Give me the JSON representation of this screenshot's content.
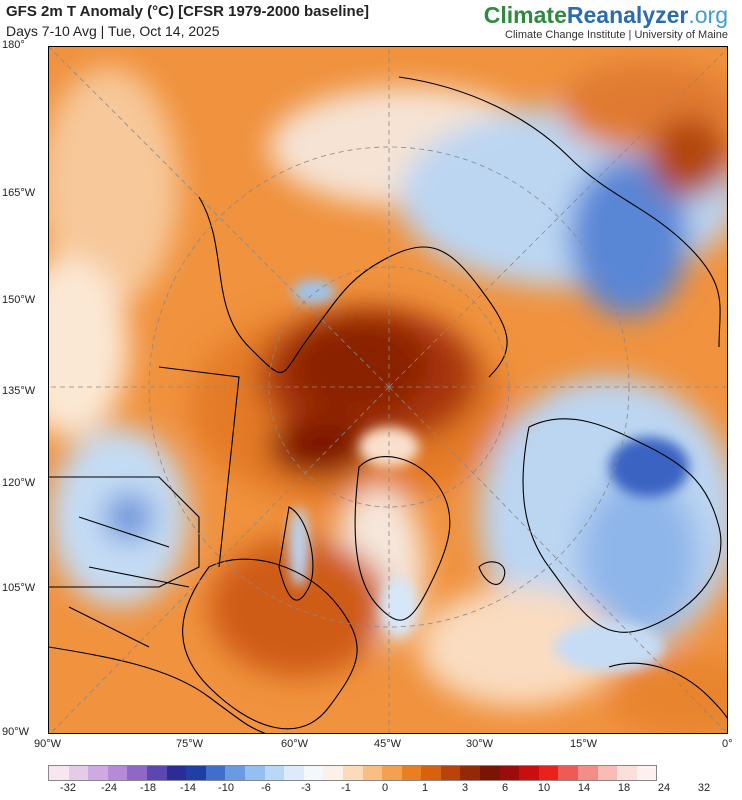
{
  "header": {
    "title": "GFS 2m T Anomaly (°C) [CFSR 1979-2000 baseline]",
    "subtitle": "Days 7-10 Avg | Tue, Oct 14, 2025",
    "brand_climate": "Climate",
    "brand_reanalyzer": "Reanalyzer",
    "brand_org": ".org",
    "affiliation": "Climate Change Institute | University of Maine"
  },
  "map": {
    "lat_labels": [
      "180°",
      "165°W",
      "150°W",
      "135°W",
      "120°W",
      "105°W",
      "90°W"
    ],
    "lon_labels": [
      "90°W",
      "75°W",
      "60°W",
      "45°W",
      "30°W",
      "15°W",
      "0°"
    ]
  },
  "colorbar": {
    "labels": [
      "-32",
      "-24",
      "-18",
      "-14",
      "-10",
      "-6",
      "-3",
      "-1",
      "0",
      "1",
      "3",
      "6",
      "10",
      "14",
      "18",
      "24",
      "32"
    ],
    "colors": [
      "#f6e6f0",
      "#e4cbe8",
      "#cfa9e2",
      "#b58ad8",
      "#8f67c6",
      "#5a48b0",
      "#2b2d96",
      "#1f3ea8",
      "#3f6fcb",
      "#6a9be0",
      "#94bff0",
      "#b9d8f6",
      "#dceaf9",
      "#f4f8fd",
      "#fbf1e6",
      "#fcdcb8",
      "#f9bf82",
      "#f3a050",
      "#ea7f22",
      "#d9600e",
      "#b9430a",
      "#932906",
      "#7a1405",
      "#9c0c0c",
      "#c80e0e",
      "#e8231c",
      "#f05a55",
      "#f48d85",
      "#f8bcb4",
      "#fbe0da",
      "#fdf2ef"
    ]
  }
}
